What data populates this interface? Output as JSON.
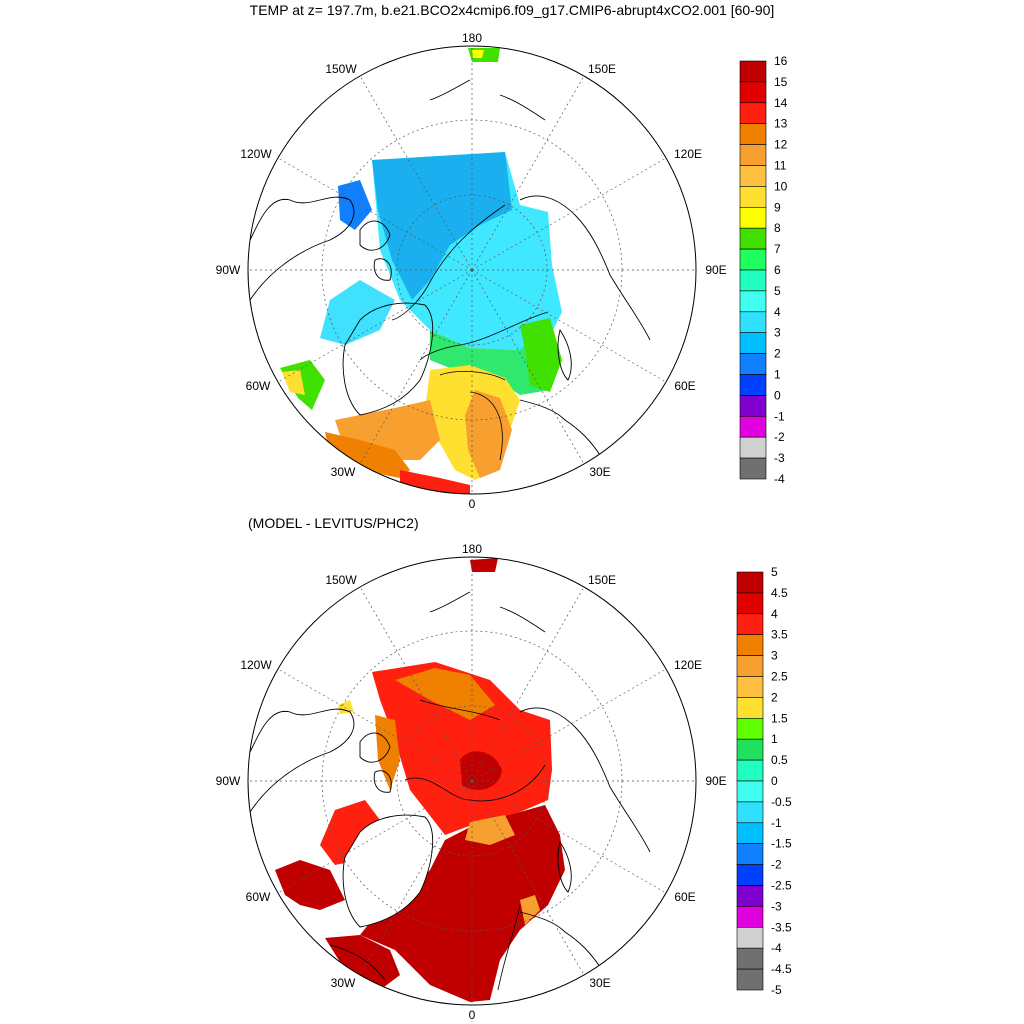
{
  "title": "TEMP at z= 197.7m, b.e21.BCO2x4cmip6.f09_g17.CMIP6-abrupt4xCO2.001 [60-90]",
  "subtitle": "(MODEL - LEVITUS/PHC2)",
  "longitude_labels": [
    "180",
    "150E",
    "120E",
    "90E",
    "60E",
    "30E",
    "0",
    "30W",
    "60W",
    "90W",
    "120W",
    "150W"
  ],
  "top_colorbar": {
    "labels": [
      "16",
      "15",
      "14",
      "13",
      "12",
      "11",
      "10",
      "9",
      "8",
      "7",
      "6",
      "5",
      "4",
      "3",
      "2",
      "1",
      "0",
      "-1",
      "-2",
      "-3",
      "-4"
    ],
    "colors": [
      "#c00000",
      "#e00000",
      "#ff2010",
      "#f08000",
      "#f7a030",
      "#ffc040",
      "#ffdf30",
      "#ffff00",
      "#40e000",
      "#20ff60",
      "#20ffc0",
      "#40fff0",
      "#30e0ff",
      "#00c0ff",
      "#1080ff",
      "#0040ff",
      "#8000d0",
      "#e000e0",
      "#d0d0d0",
      "#707070"
    ]
  },
  "bottom_colorbar": {
    "labels": [
      "5",
      "4.5",
      "4",
      "3.5",
      "3",
      "2.5",
      "2",
      "1.5",
      "1",
      "0.5",
      "0",
      "-0.5",
      "-1",
      "-1.5",
      "-2",
      "-2.5",
      "-3",
      "-3.5",
      "-4",
      "-4.5",
      "-5"
    ],
    "colors": [
      "#c00000",
      "#e00000",
      "#ff2010",
      "#f08000",
      "#f7a030",
      "#ffc040",
      "#ffdf30",
      "#60ff00",
      "#20e060",
      "#20ffc0",
      "#40fff0",
      "#30e0ff",
      "#00c0ff",
      "#1080ff",
      "#0040ff",
      "#8000d0",
      "#e000e0",
      "#d0d0d0",
      "#707070",
      "#707070"
    ]
  },
  "colors": {
    "land_outline": "#000000",
    "grid": "#555555"
  }
}
